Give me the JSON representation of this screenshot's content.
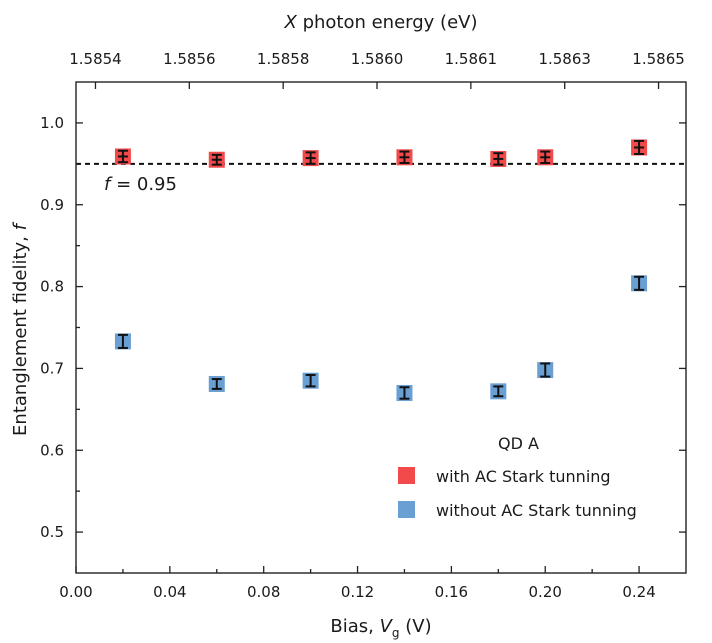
{
  "chart_data": {
    "type": "scatter",
    "xlabel_prefix": "Bias, ",
    "xlabel_var": "V",
    "xlabel_sub": "g",
    "xlabel_suffix": " (V)",
    "ylabel": "Entanglement fidelity, ",
    "ylabel_var": "f",
    "top_xlabel_var": "X",
    "top_xlabel": " photon energy (eV)",
    "xlim": [
      0.0,
      0.26
    ],
    "ylim": [
      0.45,
      1.05
    ],
    "xticks": [
      "0.00",
      "0.04",
      "0.08",
      "0.12",
      "0.16",
      "0.20",
      "0.24"
    ],
    "xtick_values": [
      0.0,
      0.04,
      0.08,
      0.12,
      0.16,
      0.2,
      0.24
    ],
    "yticks": [
      "0.5",
      "0.6",
      "0.7",
      "0.8",
      "0.9",
      "1.0"
    ],
    "ytick_values": [
      0.5,
      0.6,
      0.7,
      0.8,
      0.9,
      1.0
    ],
    "top_xticks": [
      "1.5854",
      "1.5856",
      "1.5858",
      "1.5860",
      "1.5861",
      "1.5863",
      "1.5865"
    ],
    "top_xtick_at": [
      0.0,
      0.04,
      0.08,
      0.12,
      0.16,
      0.2,
      0.24
    ],
    "reference_line": {
      "y": 0.95,
      "label_var": "f",
      "label_text": " = 0.95"
    },
    "legend": {
      "title": "QD A",
      "position": "bottom-right"
    },
    "series": [
      {
        "name": "with AC Stark tunning",
        "color": "#f24a4a",
        "x": [
          0.02,
          0.06,
          0.1,
          0.14,
          0.18,
          0.2,
          0.24
        ],
        "y": [
          0.959,
          0.955,
          0.957,
          0.958,
          0.956,
          0.958,
          0.97
        ],
        "err": [
          0.007,
          0.006,
          0.007,
          0.007,
          0.007,
          0.007,
          0.008
        ]
      },
      {
        "name": "without AC Stark tunning",
        "color": "#6a9fd4",
        "x": [
          0.02,
          0.06,
          0.1,
          0.14,
          0.18,
          0.2,
          0.24
        ],
        "y": [
          0.733,
          0.681,
          0.685,
          0.67,
          0.672,
          0.698,
          0.804
        ],
        "err": [
          0.008,
          0.006,
          0.007,
          0.007,
          0.006,
          0.008,
          0.008
        ]
      }
    ]
  }
}
